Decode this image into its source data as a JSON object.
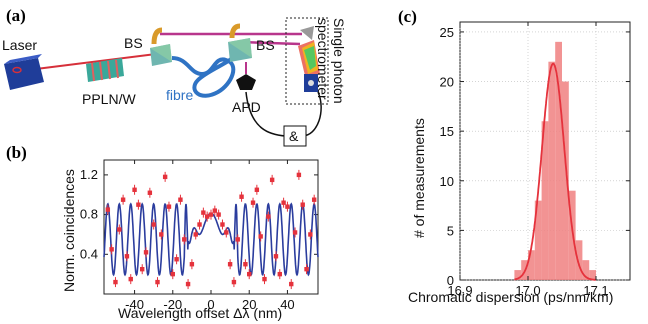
{
  "panel_a": {
    "label": "(a)",
    "laser": "Laser",
    "ppln": "PPLN/W",
    "bs1": "BS",
    "bs2": "BS",
    "fibre": "fibre",
    "apd": "APD",
    "spectrometer_line1": "Single photon",
    "spectrometer_line2": "spectrometer",
    "coincidence": "&",
    "colors": {
      "laser_beam": "#d6303a",
      "photon_path": "#b8368c",
      "fibre": "#2f73c4",
      "ppln": "#3aa89a",
      "laser_box": "#1f3d99"
    }
  },
  "panel_b": {
    "label": "(b)"
  },
  "panel_c": {
    "label": "(c)"
  },
  "chart_data": [
    {
      "type": "scatter",
      "xlabel": "Wavelength offset Δλ (nm)",
      "ylabel": "Norm. coincidences",
      "xlim": [
        -56,
        56
      ],
      "ylim": [
        0,
        1.35
      ],
      "xticks": [
        "-40",
        "-20",
        "0",
        "20",
        "40"
      ],
      "yticks": [
        "0.4",
        "0.8",
        "1.2"
      ],
      "colors": {
        "points": "#e5323c",
        "fit": "#2b3d9e"
      },
      "points": {
        "x": [
          -54,
          -52,
          -50,
          -48,
          -46,
          -44,
          -42,
          -40,
          -38,
          -36,
          -34,
          -32,
          -30,
          -28,
          -26,
          -24,
          -22,
          -20,
          -18,
          -16,
          -14,
          -12,
          -10,
          -8,
          -6,
          -4,
          -2,
          0,
          2,
          4,
          6,
          8,
          10,
          12,
          14,
          16,
          18,
          20,
          22,
          24,
          26,
          28,
          30,
          32,
          34,
          36,
          38,
          40,
          42,
          44,
          46,
          48,
          50,
          52,
          54
        ],
        "y": [
          0.85,
          0.45,
          0.12,
          0.65,
          0.95,
          0.38,
          0.15,
          1.05,
          0.9,
          0.25,
          0.42,
          1.02,
          0.7,
          0.12,
          0.6,
          1.18,
          0.88,
          0.2,
          0.35,
          0.95,
          0.55,
          0.1,
          0.3,
          0.6,
          0.7,
          0.82,
          0.78,
          0.8,
          0.84,
          0.8,
          0.7,
          0.62,
          0.3,
          0.12,
          0.55,
          0.98,
          0.3,
          0.2,
          0.92,
          1.05,
          0.58,
          0.15,
          0.78,
          1.15,
          0.38,
          0.2,
          0.92,
          0.88,
          0.1,
          0.62,
          1.2,
          0.9,
          0.25,
          0.6,
          0.95
        ]
      },
      "fit": {
        "label": ""
      }
    },
    {
      "type": "bar",
      "xlabel": "Chromatic dispersion (ps/nm/km)",
      "ylabel": "# of measurements",
      "xlim": [
        16.9,
        17.15
      ],
      "ylim": [
        0,
        26
      ],
      "xticks": [
        "16.9",
        "17.0",
        "17.1"
      ],
      "yticks": [
        "0",
        "5",
        "10",
        "15",
        "20",
        "25"
      ],
      "colors": {
        "bars": "#f08080",
        "fit": "#e5323c"
      },
      "bin_centers": [
        16.985,
        16.995,
        17.005,
        17.015,
        17.025,
        17.035,
        17.045,
        17.055,
        17.065,
        17.075,
        17.085,
        17.095
      ],
      "values": [
        1,
        2,
        3,
        8,
        16,
        22,
        24,
        20,
        9,
        4,
        2,
        1
      ]
    }
  ]
}
